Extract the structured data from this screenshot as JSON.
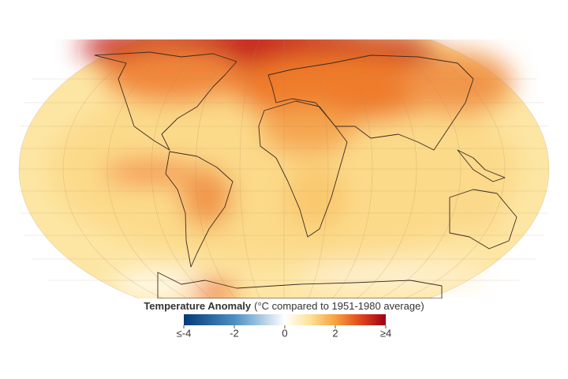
{
  "legend": {
    "title": "Temperature Anomaly",
    "subtitle": "(°C compared to 1951-1980 average)",
    "range": [
      -4,
      4
    ],
    "ticks": [
      {
        "value": -4,
        "label": "≤-4"
      },
      -2,
      0,
      2,
      {
        "value": 4,
        "label": "≥4"
      }
    ]
  }
}
